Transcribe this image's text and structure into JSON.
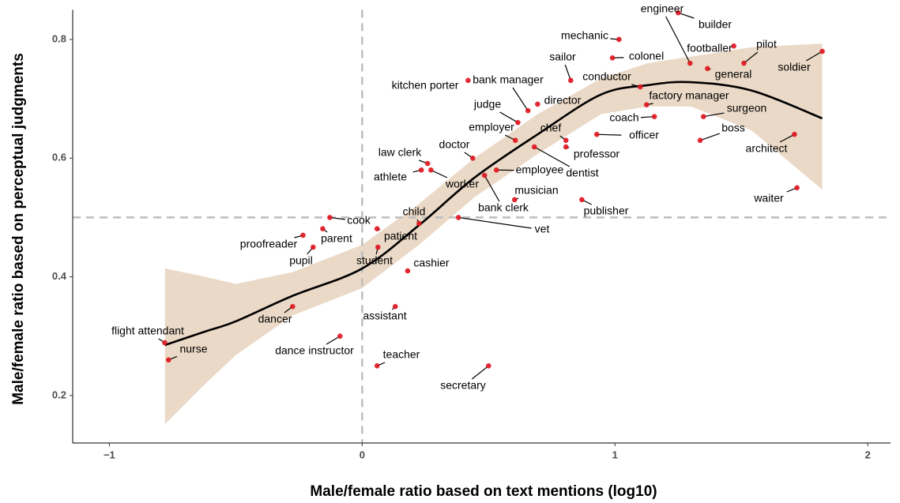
{
  "chart_data": {
    "type": "scatter",
    "x_label": "Male/female ratio based on text mentions (log10)",
    "y_label": "Male/female ratio based on perceptual judgments",
    "labels": [
      "builder",
      "engineer",
      "mechanic",
      "footballer",
      "pilot",
      "colonel",
      "soldier",
      "general",
      "sailor",
      "kitchen porter",
      "conductor",
      "bank manager",
      "director",
      "factory manager",
      "judge",
      "surgeon",
      "coach",
      "boss",
      "employer",
      "chef",
      "professor",
      "officer",
      "architect",
      "doctor",
      "dentist",
      "law clerk",
      "athlete",
      "worker",
      "employee",
      "bank clerk",
      "musician",
      "publisher",
      "waiter",
      "cook",
      "child",
      "vet",
      "patient",
      "parent",
      "proofreader",
      "pupil",
      "student",
      "cashier",
      "dancer",
      "assistant",
      "dance instructor",
      "flight attendant",
      "nurse",
      "teacher",
      "secretary"
    ],
    "x": [
      1.25,
      1.297,
      1.016,
      1.47,
      1.51,
      0.99,
      1.82,
      1.366,
      0.825,
      0.419,
      1.1,
      0.656,
      0.694,
      1.125,
      0.616,
      1.35,
      1.156,
      1.337,
      0.606,
      0.806,
      0.806,
      0.928,
      1.71,
      0.4375,
      0.681,
      0.259,
      0.234,
      0.272,
      0.531,
      0.484,
      0.603,
      0.869,
      1.72,
      -0.128,
      0.225,
      0.381,
      0.059,
      -0.156,
      -0.234,
      -0.194,
      0.0625,
      0.18,
      -0.275,
      0.131,
      -0.0875,
      -0.781,
      -0.766,
      0.059,
      0.5
    ],
    "values": [
      0.845,
      0.76,
      0.8,
      0.789,
      0.76,
      0.769,
      0.78,
      0.751,
      0.731,
      0.731,
      0.72,
      0.68,
      0.691,
      0.69,
      0.66,
      0.67,
      0.67,
      0.63,
      0.63,
      0.63,
      0.619,
      0.64,
      0.64,
      0.6,
      0.619,
      0.591,
      0.58,
      0.58,
      0.58,
      0.571,
      0.53,
      0.53,
      0.55,
      0.5,
      0.49,
      0.5,
      0.481,
      0.481,
      0.47,
      0.45,
      0.45,
      0.41,
      0.35,
      0.35,
      0.3,
      0.289,
      0.26,
      0.25,
      0.25
    ],
    "color": "#e0141e",
    "fit": {
      "x": [
        -0.78,
        -0.62,
        -0.5,
        -0.275,
        0,
        0.225,
        0.444,
        0.694,
        0.944,
        1.13,
        1.3,
        1.54,
        1.82
      ],
      "values": [
        0.285,
        0.308,
        0.325,
        0.368,
        0.414,
        0.487,
        0.567,
        0.64,
        0.707,
        0.723,
        0.728,
        0.714,
        0.667
      ],
      "lower": [
        0.152,
        0.22,
        0.268,
        0.335,
        0.381,
        0.454,
        0.534,
        0.607,
        0.674,
        0.687,
        0.687,
        0.647,
        0.547
      ],
      "upper": [
        0.414,
        0.4,
        0.388,
        0.408,
        0.454,
        0.523,
        0.6,
        0.674,
        0.734,
        0.76,
        0.771,
        0.787,
        0.793
      ],
      "color": "#000000",
      "band_color": "#ead9c6"
    },
    "vlines": [
      0
    ],
    "hlines": [
      0.5
    ],
    "xlim": [
      -1.145,
      2.09
    ],
    "ylim": [
      0.12,
      0.85
    ],
    "xticks": [
      {
        "value": -1,
        "label": "−1"
      },
      0,
      1,
      2
    ],
    "yticks": [
      0.2,
      0.4,
      0.6,
      0.8
    ]
  }
}
